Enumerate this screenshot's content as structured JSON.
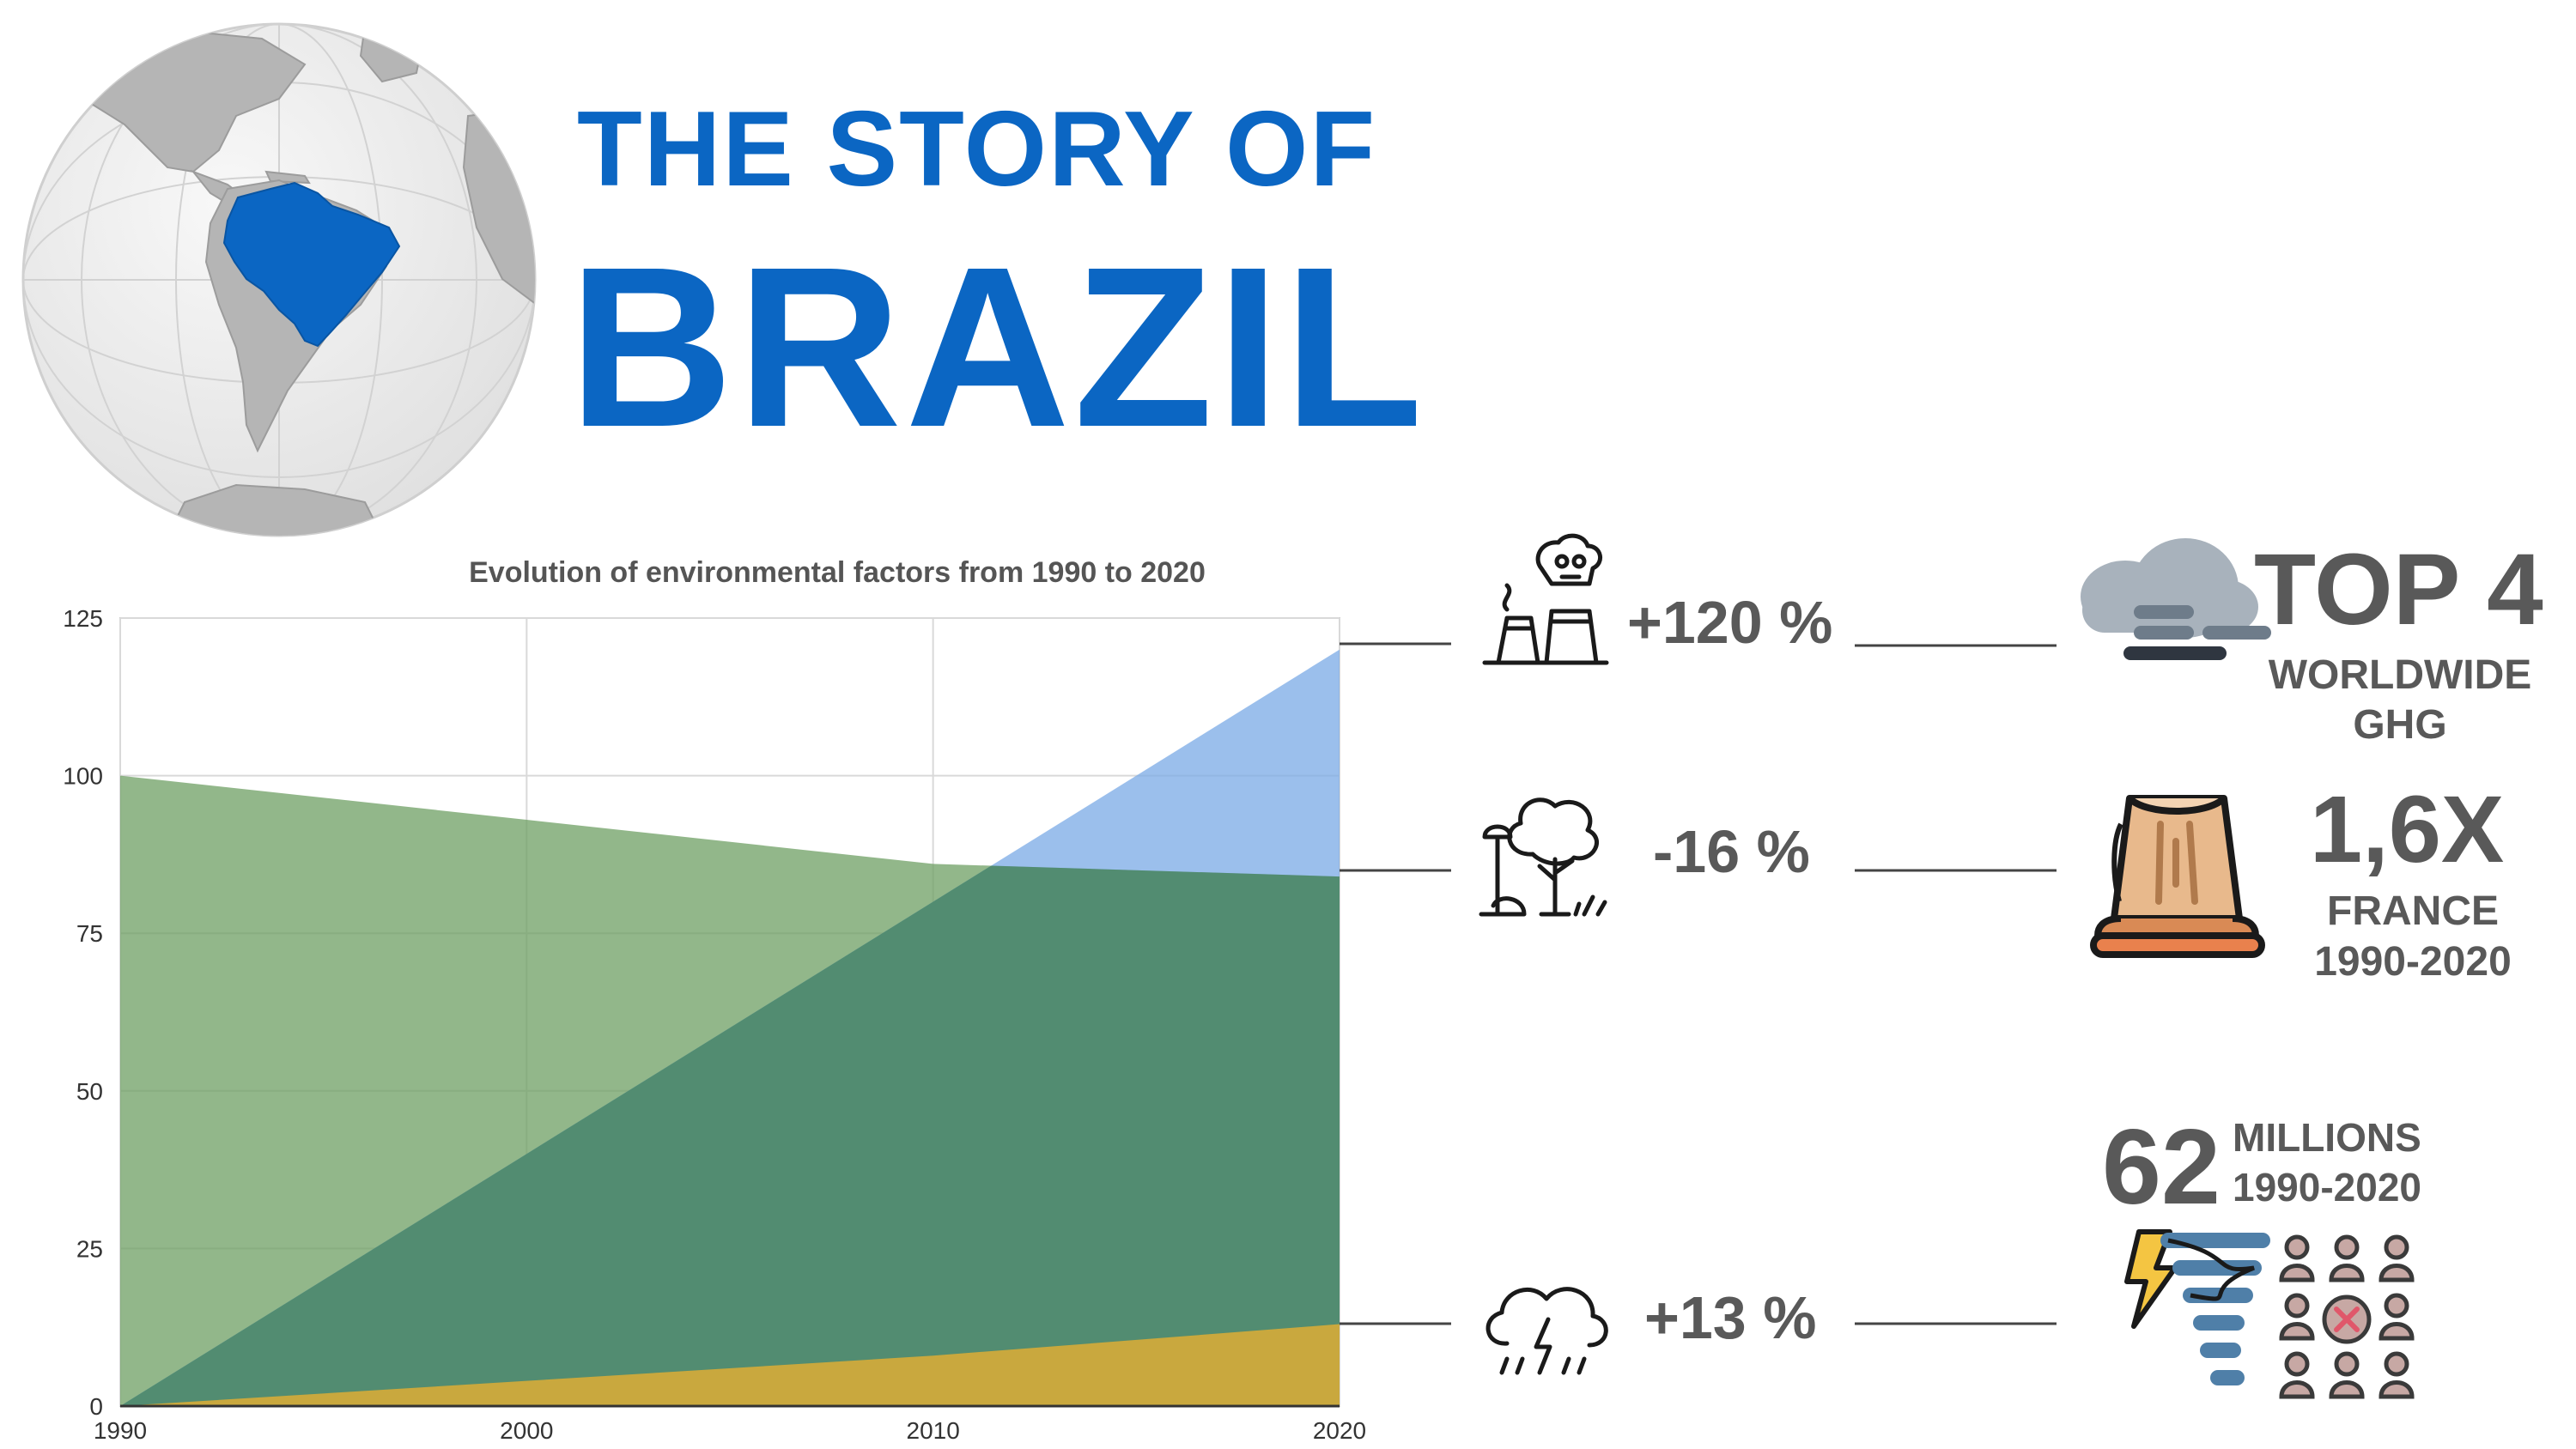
{
  "header": {
    "title_line1": "THE STORY OF",
    "title_line2": "BRAZIL"
  },
  "colors": {
    "title": "#0b66c3",
    "brazil_highlight": "#0b66c3",
    "globe_land": "#b9b9b9",
    "globe_ocean": "#ececec",
    "series_green": "#6e9f63",
    "series_blue": "#7aa9e6",
    "series_overlap": "#4a8660",
    "series_gold": "#c9a83e",
    "stat_text": "#595959"
  },
  "chart_data": {
    "type": "area",
    "title": "Evolution of environmental factors from 1990 to 2020",
    "x": [
      1990,
      2000,
      2010,
      2020
    ],
    "x_ticks": [
      "1990",
      "2000",
      "2010",
      "2020"
    ],
    "y_ticks": [
      "0",
      "25",
      "50",
      "75",
      "100",
      "125"
    ],
    "ylim": [
      0,
      125
    ],
    "xlim": [
      1990,
      2020
    ],
    "grid": true,
    "series": [
      {
        "values": [
          100,
          93,
          86,
          84
        ],
        "color": "#6e9f63"
      },
      {
        "values": [
          0,
          40,
          80,
          120
        ],
        "color": "#7aa9e6"
      },
      {
        "values": [
          0,
          4,
          8,
          13
        ],
        "color": "#c9a83e"
      }
    ]
  },
  "stats": {
    "ghg": {
      "change": "+120 %",
      "headline": "TOP 4",
      "sub1": "WORLDWIDE",
      "sub2": "GHG",
      "icon": "factory-pollution-icon",
      "badge_icon": "cloud-smog-icon"
    },
    "forest": {
      "change": "-16 %",
      "headline": "1,6X",
      "sub1": "FRANCE",
      "sub2": "1990-2020",
      "icon": "trees-icon",
      "badge_icon": "tree-stump-icon"
    },
    "disasters": {
      "change": "+13 %",
      "headline": "62",
      "sub1": "MILLIONS",
      "sub2": "1990-2020",
      "icon": "storm-cloud-icon",
      "badge_icon": "tornado-people-icon"
    }
  }
}
